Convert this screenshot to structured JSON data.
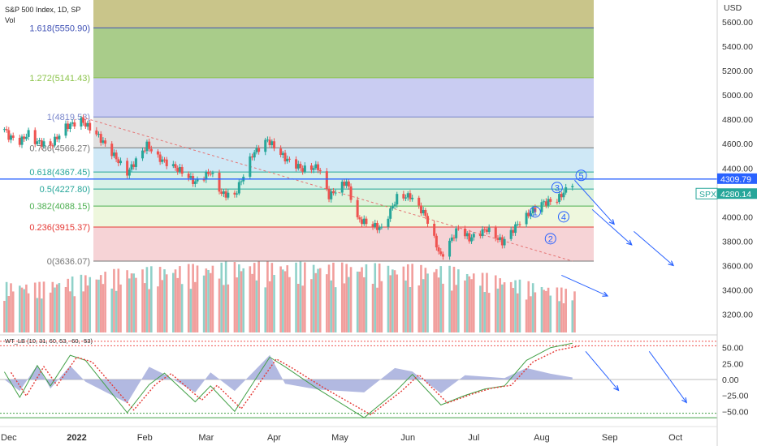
{
  "header": {
    "title": "S&P 500 Index, 1D, SP",
    "vol_label": "Vol",
    "osc_label": "WT_LB (10, 31, 60, 53, -60, -53)"
  },
  "price_axis": {
    "unit": "USD",
    "ticks": [
      3200,
      3400,
      3600,
      3800,
      4000,
      4200,
      4400,
      4600,
      4800,
      5000,
      5200,
      5400,
      5600
    ],
    "tick_labels": [
      "3200.00",
      "3400.00",
      "3600.00",
      "3800.00",
      "4000.00",
      "4200.00",
      "4400.00",
      "4600.00",
      "4800.00",
      "5000.00",
      "5200.00",
      "5400.00",
      "5600.00"
    ]
  },
  "osc_axis": {
    "ticks": [
      50,
      25,
      0,
      -25,
      -50
    ],
    "tick_labels": [
      "50.00",
      "25.00",
      "0.00",
      "−25.00",
      "−50.00"
    ]
  },
  "time_axis": {
    "labels": [
      "Dec",
      "2022",
      "Feb",
      "Mar",
      "Apr",
      "May",
      "Jun",
      "Jul",
      "Aug",
      "Sep",
      "Oct"
    ],
    "bold": "2022"
  },
  "tags": {
    "price_line_value": "4309.79",
    "symbol": "SPX",
    "last_value": "4280.14"
  },
  "wave_labels": [
    "1",
    "2",
    "3",
    "4",
    "5"
  ],
  "colors": {
    "up": "#26a69a",
    "down": "#ef5350",
    "hline": "#2962ff",
    "trend": "#e57373",
    "arrow": "#2962ff",
    "osc_fast": "#43a047",
    "osc_slow": "#e53935",
    "osc_hist": "#9fa8da"
  },
  "chart_data": {
    "type": "candlestick",
    "title": "S&P 500 Index, 1D, SP",
    "x_range": [
      "2021-11-27",
      "2022-10-20"
    ],
    "y_range": [
      3050,
      5780
    ],
    "fib_levels": [
      {
        "ratio": "1.618",
        "value": 5550.9,
        "label": "1.618(5550.90)",
        "color": "#3f51b5",
        "fill": "#c9c58a"
      },
      {
        "ratio": "1.272",
        "value": 5141.43,
        "label": "1.272(5141.43)",
        "color": "#8bc34a",
        "fill": "#a9cc8a"
      },
      {
        "ratio": "1",
        "value": 4819.53,
        "label": "1(4819.53)",
        "color": "#7986cb",
        "fill": "#c9ccf2"
      },
      {
        "ratio": "0.786",
        "value": 4566.27,
        "label": "0.786(4566.27)",
        "color": "#757575",
        "fill": "#e0e0e0"
      },
      {
        "ratio": "0.618",
        "value": 4367.45,
        "label": "0.618(4367.45)",
        "color": "#26a69a",
        "fill": "#cfe8f6"
      },
      {
        "ratio": "0.5",
        "value": 4227.8,
        "label": "0.5(4227.80)",
        "color": "#26a69a",
        "fill": "#d8f1e6"
      },
      {
        "ratio": "0.382",
        "value": 4088.15,
        "label": "0.382(4088.15)",
        "color": "#4caf50",
        "fill": "#dff2dc"
      },
      {
        "ratio": "0.236",
        "value": 3915.37,
        "label": "0.236(3915.37)",
        "color": "#e53935",
        "fill": "#eef7dd"
      },
      {
        "ratio": "0",
        "value": 3636.07,
        "label": "0(3636.07)",
        "color": "#757575",
        "fill": "#f6d3d6"
      }
    ],
    "horizontal_line": 4309.79,
    "trendline": [
      {
        "date": "2022-01-03",
        "price": 4819.53
      },
      {
        "date": "2022-08-15",
        "price": 3636.07
      }
    ],
    "price_series": [
      {
        "date": "2021-11-29",
        "close": 4720
      },
      {
        "date": "2021-12-01",
        "close": 4660
      },
      {
        "date": "2021-12-06",
        "close": 4615
      },
      {
        "date": "2021-12-10",
        "close": 4685
      },
      {
        "date": "2021-12-13",
        "close": 4620
      },
      {
        "date": "2021-12-20",
        "close": 4585
      },
      {
        "date": "2021-12-27",
        "close": 4740
      },
      {
        "date": "2022-01-03",
        "close": 4790
      },
      {
        "date": "2022-01-10",
        "close": 4680
      },
      {
        "date": "2022-01-19",
        "close": 4480
      },
      {
        "date": "2022-01-24",
        "close": 4360
      },
      {
        "date": "2022-02-02",
        "close": 4590
      },
      {
        "date": "2022-02-07",
        "close": 4485
      },
      {
        "date": "2022-02-18",
        "close": 4370
      },
      {
        "date": "2022-02-24",
        "close": 4280
      },
      {
        "date": "2022-03-03",
        "close": 4370
      },
      {
        "date": "2022-03-08",
        "close": 4190
      },
      {
        "date": "2022-03-14",
        "close": 4175
      },
      {
        "date": "2022-03-22",
        "close": 4510
      },
      {
        "date": "2022-03-29",
        "close": 4630
      },
      {
        "date": "2022-04-06",
        "close": 4480
      },
      {
        "date": "2022-04-14",
        "close": 4390
      },
      {
        "date": "2022-04-21",
        "close": 4410
      },
      {
        "date": "2022-04-26",
        "close": 4170
      },
      {
        "date": "2022-05-04",
        "close": 4290
      },
      {
        "date": "2022-05-09",
        "close": 3980
      },
      {
        "date": "2022-05-20",
        "close": 3900
      },
      {
        "date": "2022-05-27",
        "close": 4160
      },
      {
        "date": "2022-06-02",
        "close": 4170
      },
      {
        "date": "2022-06-09",
        "close": 4010
      },
      {
        "date": "2022-06-16",
        "close": 3670
      },
      {
        "date": "2022-06-24",
        "close": 3910
      },
      {
        "date": "2022-06-29",
        "close": 3820
      },
      {
        "date": "2022-07-07",
        "close": 3900
      },
      {
        "date": "2022-07-14",
        "close": 3790
      },
      {
        "date": "2022-07-22",
        "close": 3960
      },
      {
        "date": "2022-08-01",
        "close": 4110
      },
      {
        "date": "2022-08-08",
        "close": 4140
      },
      {
        "date": "2022-08-15",
        "close": 4280
      }
    ],
    "volume": [
      {
        "date": "2021-12-15",
        "value": 2600000000.0
      },
      {
        "date": "2022-01-20",
        "value": 3300000000.0
      },
      {
        "date": "2022-03-18",
        "value": 3700000000.0
      },
      {
        "date": "2022-06-17",
        "value": 3500000000.0
      },
      {
        "date": "2022-08-15",
        "value": 2200000000.0
      }
    ],
    "oscillator": {
      "name": "WT_LB (10, 31, 60, 53, -60, -53)",
      "levels": [
        60,
        53,
        -53,
        -60
      ],
      "series": [
        {
          "date": "2021-11-29",
          "value": 12
        },
        {
          "date": "2021-12-06",
          "value": -28
        },
        {
          "date": "2021-12-14",
          "value": 22
        },
        {
          "date": "2021-12-20",
          "value": -10
        },
        {
          "date": "2021-12-29",
          "value": 38
        },
        {
          "date": "2022-01-05",
          "value": 30
        },
        {
          "date": "2022-01-24",
          "value": -52
        },
        {
          "date": "2022-02-03",
          "value": -8
        },
        {
          "date": "2022-02-10",
          "value": 10
        },
        {
          "date": "2022-02-24",
          "value": -35
        },
        {
          "date": "2022-03-03",
          "value": -10
        },
        {
          "date": "2022-03-14",
          "value": -50
        },
        {
          "date": "2022-03-30",
          "value": 35
        },
        {
          "date": "2022-04-06",
          "value": 20
        },
        {
          "date": "2022-04-21",
          "value": -15
        },
        {
          "date": "2022-05-12",
          "value": -60
        },
        {
          "date": "2022-05-26",
          "value": -20
        },
        {
          "date": "2022-06-03",
          "value": 8
        },
        {
          "date": "2022-06-16",
          "value": -40
        },
        {
          "date": "2022-06-27",
          "value": -25
        },
        {
          "date": "2022-07-06",
          "value": -15
        },
        {
          "date": "2022-07-15",
          "value": -10
        },
        {
          "date": "2022-07-25",
          "value": 30
        },
        {
          "date": "2022-08-05",
          "value": 50
        },
        {
          "date": "2022-08-15",
          "value": 57
        }
      ]
    }
  }
}
